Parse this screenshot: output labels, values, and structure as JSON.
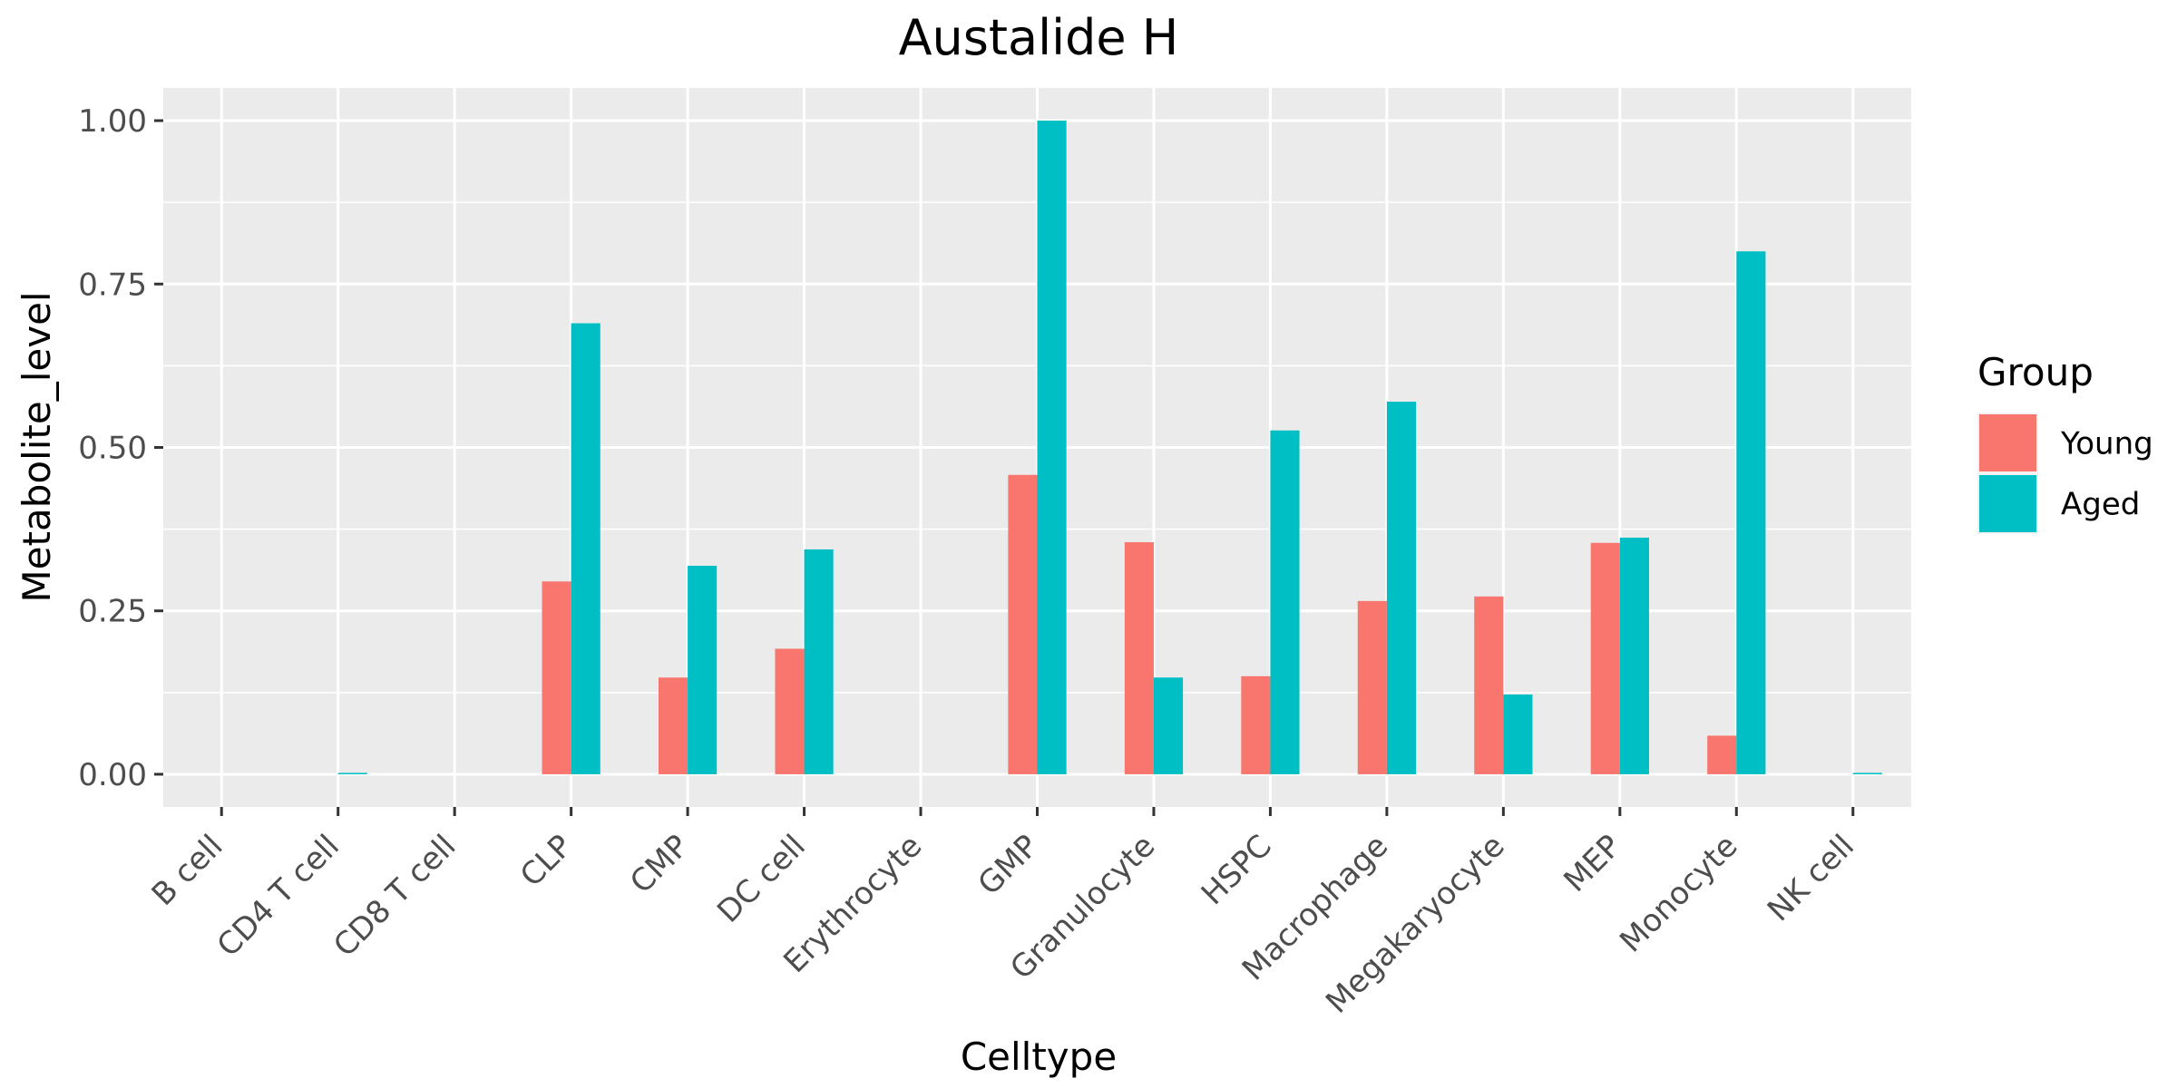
{
  "chart_data": {
    "type": "bar",
    "title": "Austalide H",
    "xlabel": "Celltype",
    "ylabel": "Metabolite_level",
    "ylim": [
      -0.05,
      1.05
    ],
    "yticks": [
      "0.00",
      "0.25",
      "0.50",
      "0.75",
      "1.00"
    ],
    "ytick_values": [
      0,
      0.25,
      0.5,
      0.75,
      1.0
    ],
    "categories": [
      "B cell",
      "CD4 T cell",
      "CD8 T cell",
      "CLP",
      "CMP",
      "DC cell",
      "Erythrocyte",
      "GMP",
      "Granulocyte",
      "HSPC",
      "Macrophage",
      "Megakaryocyte",
      "MEP",
      "Monocyte",
      "NK cell"
    ],
    "series": [
      {
        "name": "Young",
        "color": "#F8766D",
        "values": [
          0,
          0,
          0,
          0.295,
          0.148,
          0.192,
          0,
          0.458,
          0.355,
          0.15,
          0.265,
          0.272,
          0.354,
          0.059,
          0
        ]
      },
      {
        "name": "Aged",
        "color": "#00BFC4",
        "values": [
          0,
          0.002,
          0,
          0.69,
          0.319,
          0.344,
          0,
          1.0,
          0.148,
          0.526,
          0.57,
          0.122,
          0.362,
          0.8,
          0.002
        ]
      }
    ],
    "legend": {
      "title": "Group",
      "position": "right"
    },
    "grid": true,
    "panel_background": "#EBEBEB",
    "grid_color": "#FFFFFF"
  }
}
